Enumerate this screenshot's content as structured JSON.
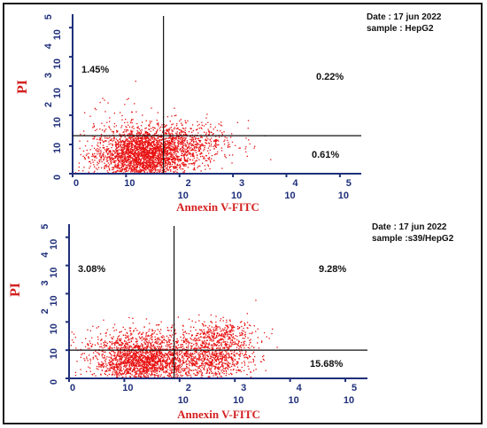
{
  "chart_data": [
    {
      "type": "scatter",
      "title": "",
      "meta": {
        "date": "Date : 17 jun 2022",
        "sample": "sample : HepG2"
      },
      "xlabel": "Annexin V-FITC",
      "ylabel": "PI",
      "xlim": [
        0,
        5.4
      ],
      "ylim": [
        0,
        5.4
      ],
      "x_ticks": [
        {
          "v": 0,
          "top": "",
          "bottom": "0"
        },
        {
          "v": 1,
          "top": "",
          "bottom": "10"
        },
        {
          "v": 2,
          "top": "2",
          "bottom": "10"
        },
        {
          "v": 3,
          "top": "3",
          "bottom": "10"
        },
        {
          "v": 4,
          "top": "4",
          "bottom": "10"
        },
        {
          "v": 5,
          "top": "5",
          "bottom": "10"
        }
      ],
      "y_ticks": [
        {
          "v": 0,
          "base": "0",
          "exp": ""
        },
        {
          "v": 1,
          "base": "10",
          "exp": ""
        },
        {
          "v": 2,
          "base": "10",
          "exp": "2"
        },
        {
          "v": 3,
          "base": "10",
          "exp": "3"
        },
        {
          "v": 4,
          "base": "10",
          "exp": "4"
        },
        {
          "v": 5,
          "base": "10",
          "exp": "5"
        }
      ],
      "gates": {
        "x": 1.7,
        "y": 1.3
      },
      "quadrants": {
        "upper_left": "1.45%",
        "upper_right": "0.22%",
        "lower_right": "0.61%",
        "lower_left": ""
      },
      "point_color": "#e81010",
      "populations": [
        {
          "x": 1.3,
          "y": 0.65,
          "sx": 0.45,
          "sy": 0.45,
          "n": 2600
        },
        {
          "x": 2.1,
          "y": 1.1,
          "sx": 0.5,
          "sy": 0.35,
          "n": 550
        },
        {
          "x": 0.8,
          "y": 1.8,
          "sx": 0.45,
          "sy": 0.5,
          "n": 45
        }
      ]
    },
    {
      "type": "scatter",
      "title": "",
      "meta": {
        "date": "Date : 17 jun 2022",
        "sample": "sample :s39/HepG2"
      },
      "xlabel": "Annexin V-FITC",
      "ylabel": "PI",
      "xlim": [
        0,
        5.4
      ],
      "ylim": [
        0,
        5.4
      ],
      "x_ticks": [
        {
          "v": 0,
          "top": "",
          "bottom": "0"
        },
        {
          "v": 1,
          "top": "",
          "bottom": "10"
        },
        {
          "v": 2,
          "top": "2",
          "bottom": "10"
        },
        {
          "v": 3,
          "top": "3",
          "bottom": "10"
        },
        {
          "v": 4,
          "top": "4",
          "bottom": "10"
        },
        {
          "v": 5,
          "top": "5",
          "bottom": "10"
        }
      ],
      "y_ticks": [
        {
          "v": 0,
          "base": "0",
          "exp": ""
        },
        {
          "v": 1,
          "base": "10",
          "exp": ""
        },
        {
          "v": 2,
          "base": "10",
          "exp": "2"
        },
        {
          "v": 3,
          "base": "10",
          "exp": "3"
        },
        {
          "v": 4,
          "base": "10",
          "exp": "4"
        },
        {
          "v": 5,
          "base": "10",
          "exp": "5"
        }
      ],
      "gates": {
        "x": 1.9,
        "y": 1.0
      },
      "quadrants": {
        "upper_left": "3.08%",
        "upper_right": "9.28%",
        "lower_right": "15.68%",
        "lower_left": ""
      },
      "point_color": "#e81010",
      "populations": [
        {
          "x": 1.35,
          "y": 0.6,
          "sx": 0.45,
          "sy": 0.4,
          "n": 1900
        },
        {
          "x": 2.6,
          "y": 0.7,
          "sx": 0.35,
          "sy": 0.35,
          "n": 650
        },
        {
          "x": 2.7,
          "y": 1.5,
          "sx": 0.35,
          "sy": 0.3,
          "n": 420
        },
        {
          "x": 1.2,
          "y": 1.4,
          "sx": 0.5,
          "sy": 0.3,
          "n": 260
        }
      ]
    }
  ]
}
